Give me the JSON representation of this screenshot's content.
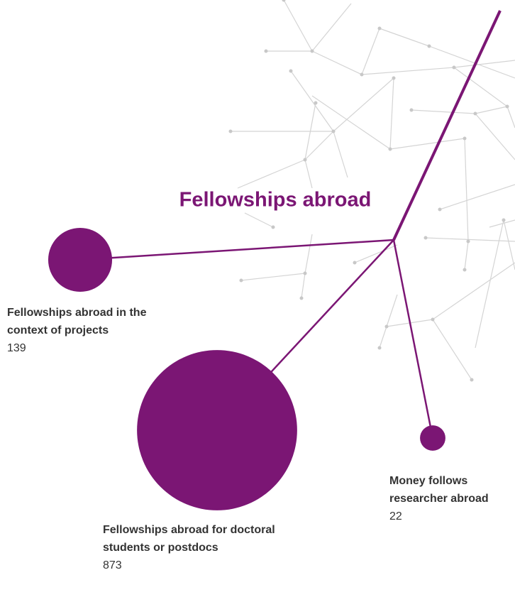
{
  "chart_data": {
    "type": "bubble",
    "title": "Fellowships abroad",
    "categories": [
      "Fellowships abroad in the context of projects",
      "Fellowships abroad for doctoral students or postdocs",
      "Money follows researcher abroad"
    ],
    "values": [
      139,
      873,
      22
    ],
    "color": "#7b1674"
  }
}
